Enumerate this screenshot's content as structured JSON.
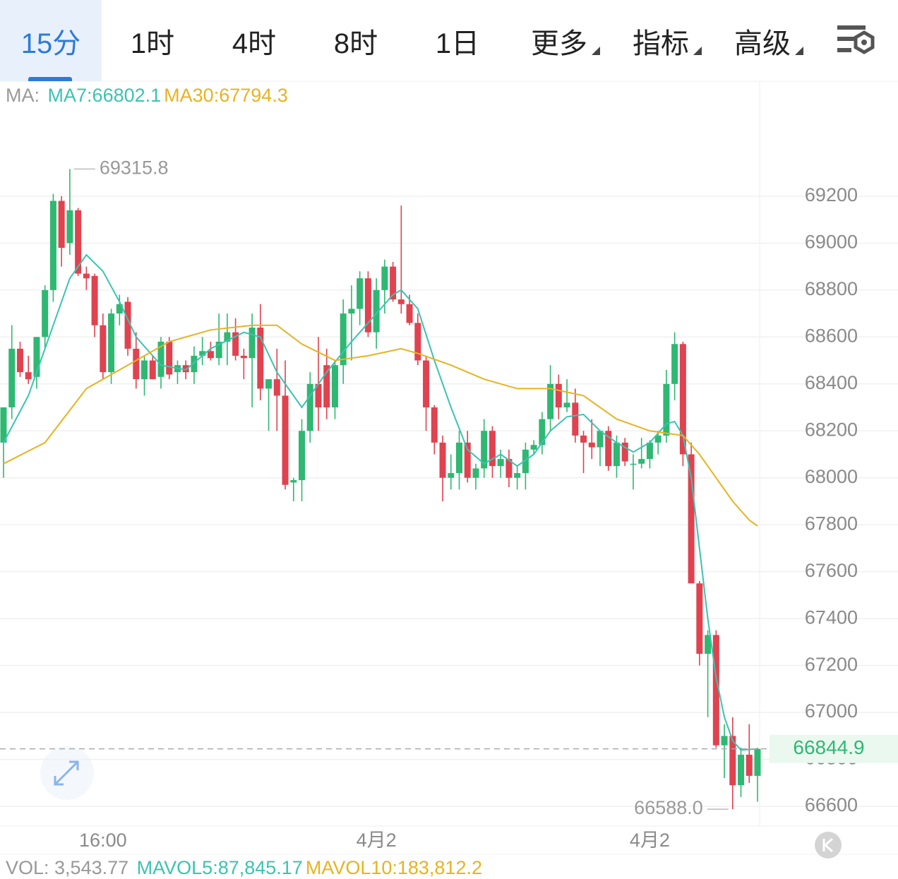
{
  "tabs": [
    "15分",
    "1时",
    "4时",
    "8时",
    "1日",
    "更多",
    "指标",
    "高级"
  ],
  "indicator_legend": {
    "prefix": "MA:",
    "items": [
      {
        "text": "MA7:66802.1",
        "color": "#3cc3b0"
      },
      {
        "text": "MA30:67794.3",
        "color": "#e8b320"
      }
    ]
  },
  "volume_legend": {
    "prefix": "VOL: 3,543.77",
    "items": [
      {
        "text": "MAVOL5:87,845.17",
        "color": "#3cc3b0"
      },
      {
        "text": "MAVOL10:183,812.2",
        "color": "#e8b320"
      }
    ]
  },
  "chart_data": {
    "type": "candlestick",
    "up_color": "#2eb872",
    "down_color": "#e0424f",
    "categories": [
      null,
      null,
      null,
      null,
      null,
      null,
      null,
      null,
      null,
      null,
      null,
      null,
      "16:00",
      null,
      null,
      null,
      null,
      null,
      null,
      null,
      null,
      null,
      null,
      null,
      null,
      null,
      null,
      null,
      null,
      null,
      null,
      null,
      null,
      null,
      null,
      null,
      null,
      null,
      null,
      null,
      null,
      null,
      null,
      null,
      null,
      "4月2",
      null,
      null,
      null,
      null,
      null,
      null,
      null,
      null,
      null,
      null,
      null,
      null,
      null,
      null,
      null,
      null,
      null,
      null,
      null,
      null,
      null,
      null,
      null,
      null,
      null,
      null,
      null,
      null,
      null,
      null,
      null,
      null,
      "4月2",
      null,
      null,
      null,
      null,
      null,
      null,
      null,
      null,
      null,
      null,
      null,
      null,
      null
    ],
    "open": [
      68150,
      68300,
      68550,
      68450,
      68430,
      68600,
      68800,
      69180,
      69000,
      69140,
      68870,
      68860,
      68650,
      68450,
      68700,
      68750,
      68550,
      68420,
      68500,
      68430,
      68580,
      68450,
      68480,
      68450,
      68520,
      68540,
      68510,
      68580,
      68620,
      68520,
      68510,
      68640,
      68380,
      68420,
      68350,
      67980,
      67990,
      68200,
      68400,
      68480,
      68300,
      68480,
      68700,
      68720,
      68850,
      68620,
      68800,
      68900,
      68760,
      68740,
      68660,
      68500,
      68300,
      68150,
      68000,
      68020,
      68150,
      68000,
      68040,
      68200,
      68050,
      68080,
      68000,
      68020,
      68120,
      68140,
      68250,
      68400,
      68300,
      68320,
      68180,
      68150,
      68130,
      68200,
      68050,
      68150,
      68060,
      68060,
      68080,
      68150,
      68180,
      68400,
      68570,
      68100,
      67550,
      67250,
      67330,
      66860,
      66900,
      66690,
      66820,
      66730
    ],
    "high": [
      68300,
      68650,
      68580,
      68520,
      68600,
      68820,
      69210,
      69200,
      69315.8,
      69150,
      68900,
      68870,
      68700,
      68720,
      68780,
      68770,
      68620,
      68520,
      68520,
      68600,
      68600,
      68500,
      68500,
      68560,
      68600,
      68580,
      68700,
      68700,
      68680,
      68550,
      68700,
      68740,
      68420,
      68550,
      68500,
      68000,
      68250,
      68450,
      68600,
      68550,
      68500,
      68760,
      68820,
      68880,
      68880,
      68850,
      68930,
      68920,
      69160,
      68780,
      68700,
      68520,
      68310,
      68180,
      68100,
      68200,
      68200,
      68060,
      68250,
      68220,
      68120,
      68120,
      68050,
      68150,
      68160,
      68280,
      68480,
      68440,
      68420,
      68380,
      68200,
      68250,
      68200,
      68220,
      68180,
      68170,
      68100,
      68170,
      68160,
      68200,
      68460,
      68620,
      68580,
      68150,
      67560,
      67350,
      67350,
      66950,
      66980,
      66850,
      66950,
      66850
    ],
    "low": [
      68000,
      68250,
      68430,
      68400,
      68380,
      68550,
      68750,
      68900,
      68950,
      68860,
      68800,
      68600,
      68420,
      68400,
      68650,
      68520,
      68380,
      68350,
      68420,
      68380,
      68420,
      68400,
      68420,
      68400,
      68480,
      68500,
      68480,
      68480,
      68500,
      68420,
      68300,
      68330,
      68200,
      68200,
      67950,
      67900,
      67900,
      68150,
      68200,
      68250,
      68250,
      68400,
      68500,
      68650,
      68600,
      68550,
      68700,
      68750,
      68700,
      68650,
      68480,
      68200,
      68100,
      67900,
      67950,
      67950,
      67980,
      67950,
      68000,
      68000,
      68000,
      67960,
      67950,
      67950,
      68100,
      68100,
      68200,
      68250,
      68280,
      68150,
      68020,
      68080,
      68050,
      68030,
      68000,
      68050,
      67950,
      68040,
      68040,
      68100,
      68150,
      68330,
      68050,
      67550,
      67200,
      66980,
      66850,
      66720,
      66588,
      66640,
      66700,
      66620
    ],
    "close": [
      68300,
      68550,
      68450,
      68420,
      68600,
      68800,
      69180,
      68980,
      69140,
      68870,
      68850,
      68650,
      68450,
      68700,
      68740,
      68550,
      68420,
      68500,
      68420,
      68580,
      68440,
      68480,
      68450,
      68520,
      68540,
      68510,
      68580,
      68620,
      68520,
      68510,
      68640,
      68380,
      68420,
      68350,
      67970,
      67990,
      68200,
      68400,
      68300,
      68300,
      68480,
      68700,
      68720,
      68850,
      68620,
      68800,
      68900,
      68760,
      68740,
      68660,
      68500,
      68300,
      68150,
      68000,
      68020,
      68150,
      68000,
      68040,
      68200,
      68050,
      68080,
      68000,
      68020,
      68120,
      68140,
      68250,
      68400,
      68300,
      68320,
      68180,
      68150,
      68130,
      68200,
      68050,
      68150,
      68070,
      68060,
      68080,
      68150,
      68180,
      68400,
      68570,
      68100,
      67550,
      67250,
      67330,
      66860,
      66900,
      66690,
      66820,
      66730,
      66844.9
    ],
    "ma_lines": [
      {
        "color": "#3cc3b0",
        "x": [
          0,
          3,
          6,
          8,
          10,
          12,
          14,
          16,
          19,
          22,
          25,
          29,
          31,
          33,
          36,
          39,
          42,
          45,
          47,
          48,
          50,
          52,
          54,
          56,
          58,
          60,
          62,
          64,
          66,
          68,
          70,
          72,
          74,
          76,
          78,
          80,
          81,
          82,
          83,
          84,
          85,
          86,
          87,
          88,
          89,
          91
        ],
        "values": [
          68150,
          68350,
          68650,
          68850,
          68950,
          68880,
          68750,
          68600,
          68480,
          68460,
          68550,
          68620,
          68600,
          68450,
          68300,
          68450,
          68580,
          68700,
          68780,
          68800,
          68720,
          68500,
          68300,
          68120,
          68060,
          68100,
          68050,
          68100,
          68200,
          68260,
          68270,
          68200,
          68150,
          68110,
          68150,
          68230,
          68240,
          68180,
          68000,
          67700,
          67400,
          67150,
          66980,
          66880,
          66840,
          66845
        ]
      },
      {
        "color": "#e8b320",
        "x": [
          0,
          5,
          10,
          15,
          20,
          25,
          30,
          33,
          36,
          40,
          44,
          48,
          50,
          54,
          58,
          62,
          66,
          70,
          74,
          78,
          82,
          84,
          86,
          88,
          90,
          91
        ],
        "values": [
          68060,
          68150,
          68380,
          68480,
          68580,
          68630,
          68650,
          68650,
          68570,
          68500,
          68520,
          68550,
          68530,
          68480,
          68420,
          68380,
          68380,
          68350,
          68250,
          68200,
          68180,
          68100,
          68000,
          67900,
          67820,
          67794.3
        ]
      }
    ],
    "ylim": [
      66516,
      69690
    ],
    "yticks": [
      66600,
      66800,
      67000,
      67200,
      67400,
      67600,
      67800,
      68000,
      68200,
      68400,
      68600,
      68800,
      69000,
      69200
    ],
    "grid": true,
    "high_marker": 69315.8,
    "low_marker": {
      "value": 66588,
      "label": "66588.0"
    },
    "last_price": 66844.9,
    "last_price_color": "#2eb872"
  }
}
